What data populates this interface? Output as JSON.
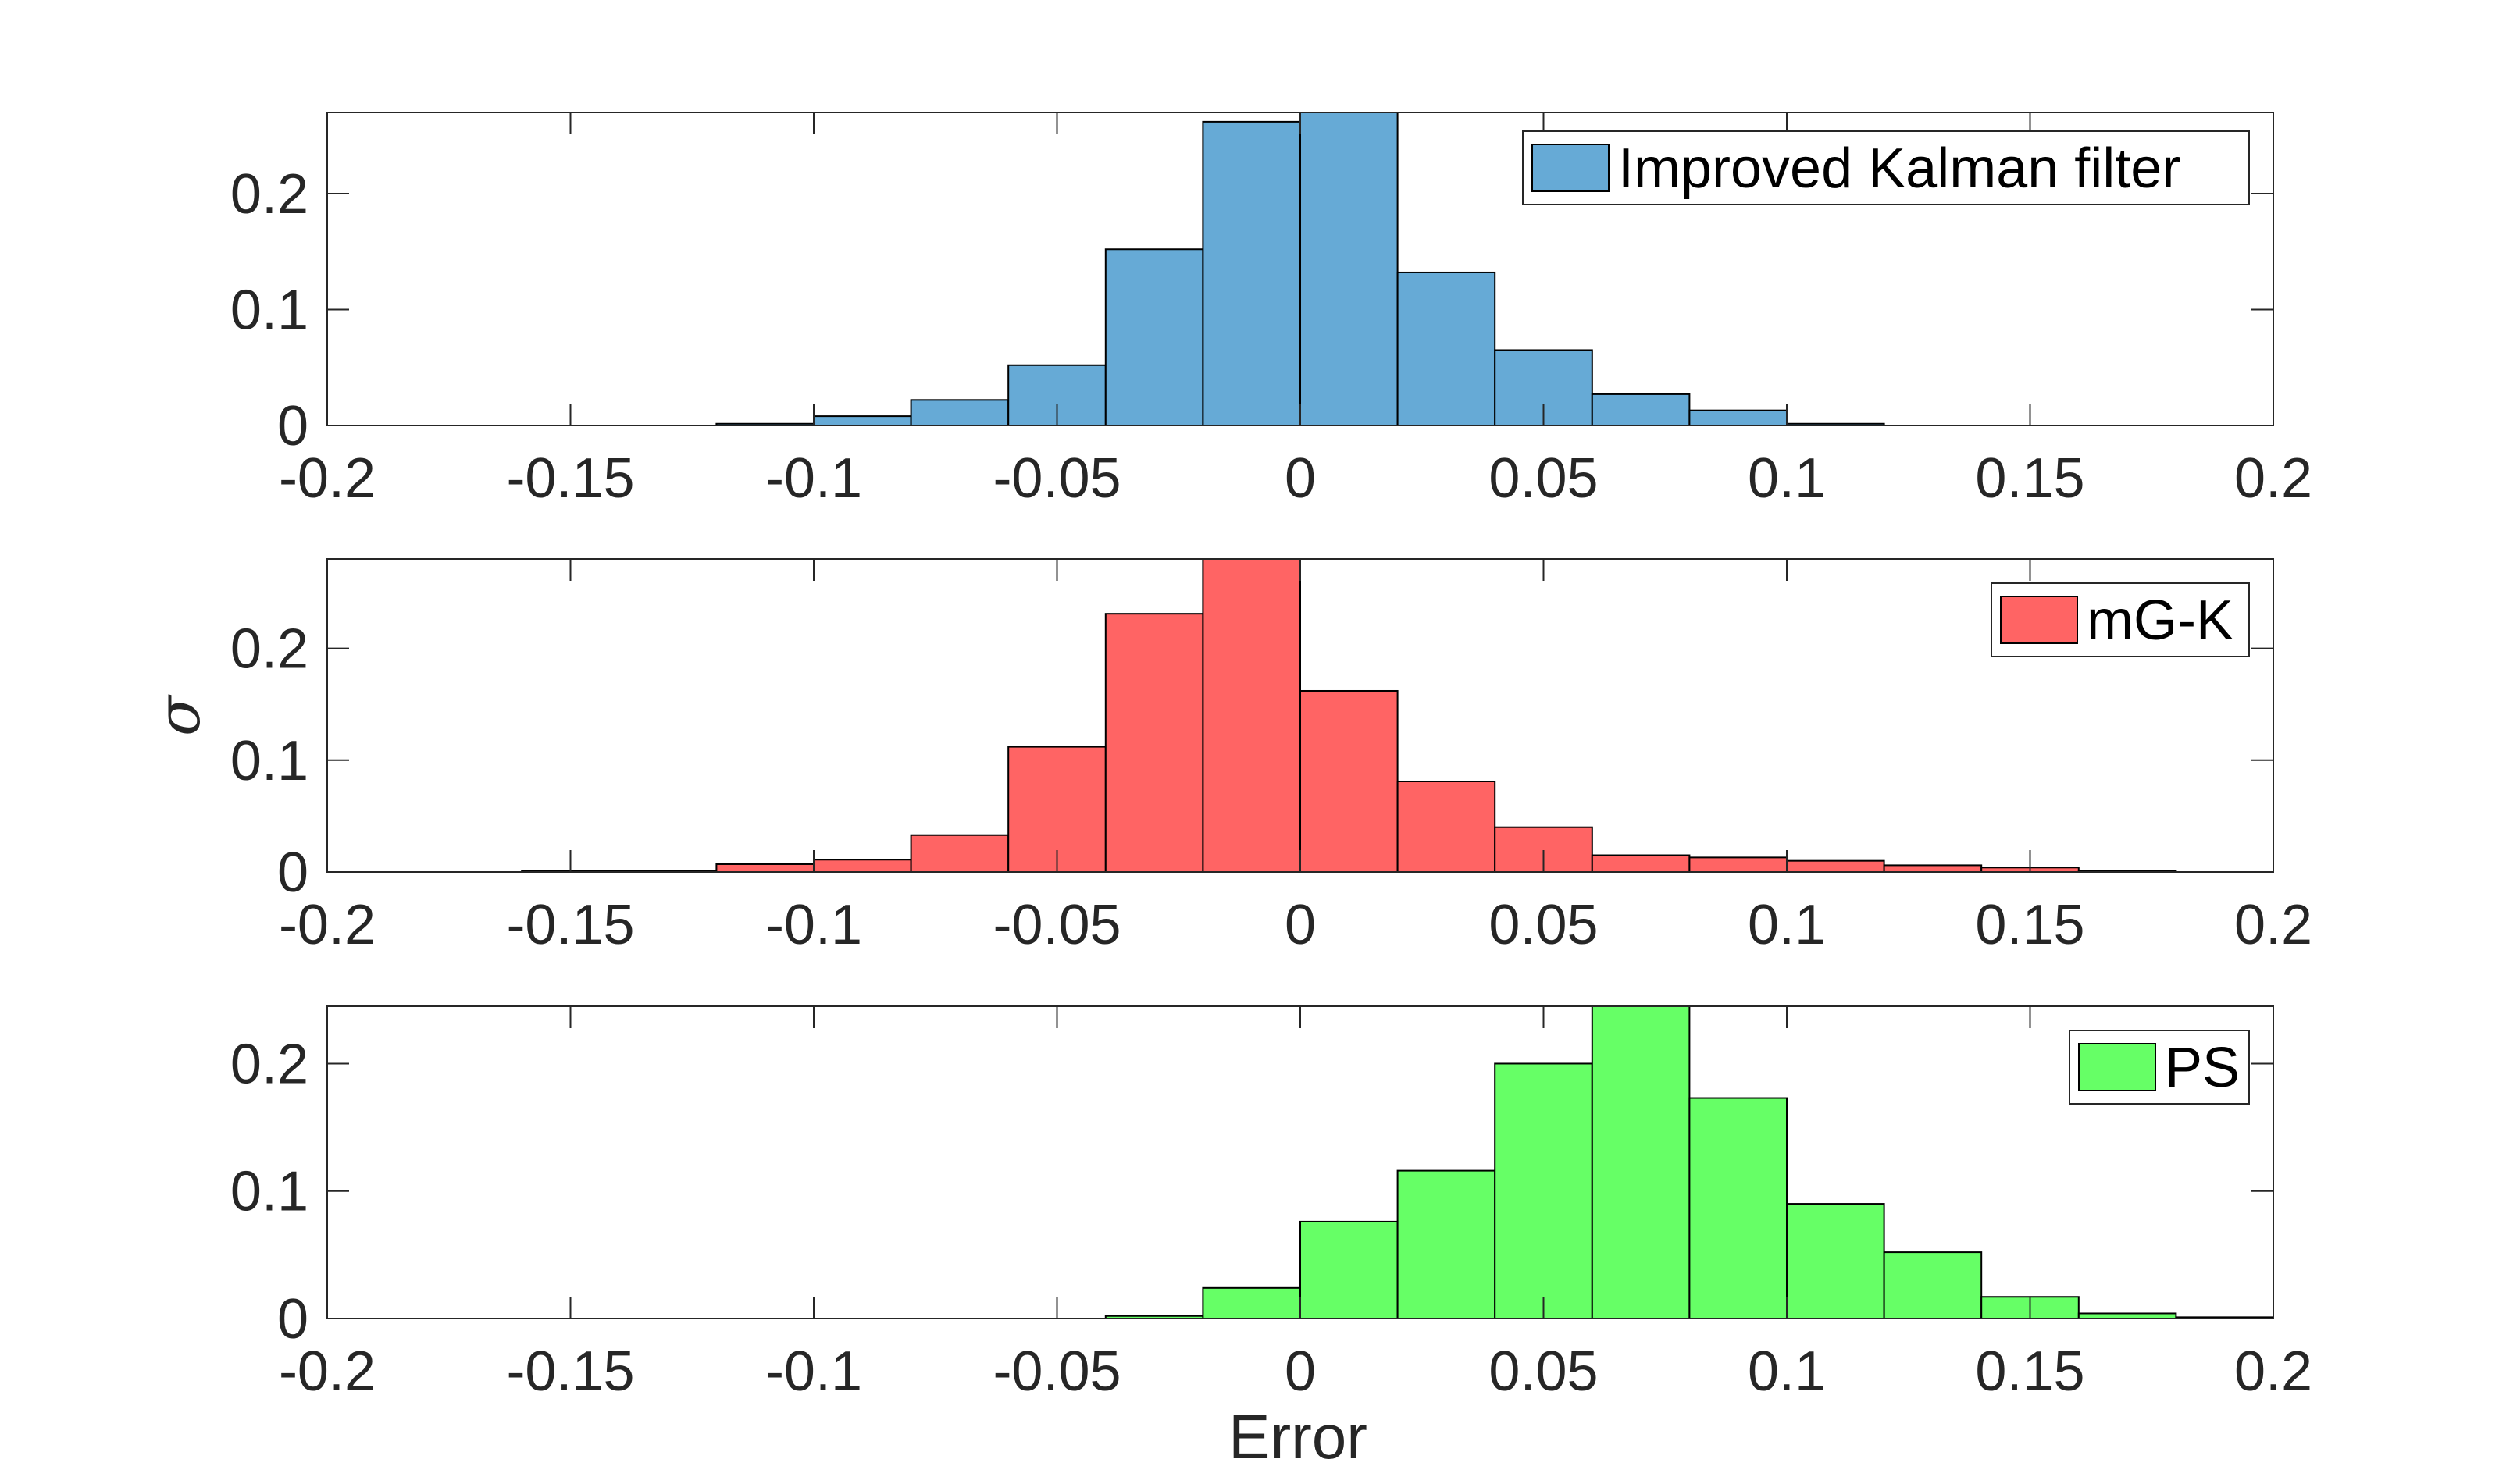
{
  "chart_data": {
    "type": "bar",
    "layout": "three stacked histogram panels sharing the x axis",
    "xlabel": "Error",
    "ylabel": "σ",
    "xlim": [
      -0.2,
      0.2
    ],
    "x_ticks": [
      -0.2,
      -0.15,
      -0.1,
      -0.05,
      0,
      0.05,
      0.1,
      0.15,
      0.2
    ],
    "x_tick_labels": [
      "-0.2",
      "-0.15",
      "-0.1",
      "-0.05",
      "0",
      "0.05",
      "0.1",
      "0.15",
      "0.2"
    ],
    "bin_width": 0.02,
    "panels": [
      {
        "name": "Improved Kalman filter",
        "legend": "Improved Kalman filter",
        "color": "#66aad6",
        "ylim": [
          0,
          0.27
        ],
        "y_ticks": [
          0,
          0.1,
          0.2
        ],
        "y_tick_labels": [
          "0",
          "0.1",
          "0.2"
        ],
        "bins": [
          {
            "x0": -0.12,
            "value": 0.0015
          },
          {
            "x0": -0.1,
            "value": 0.008
          },
          {
            "x0": -0.08,
            "value": 0.022
          },
          {
            "x0": -0.06,
            "value": 0.052
          },
          {
            "x0": -0.04,
            "value": 0.152
          },
          {
            "x0": -0.02,
            "value": 0.262
          },
          {
            "x0": 0.0,
            "value": 0.27
          },
          {
            "x0": 0.02,
            "value": 0.132
          },
          {
            "x0": 0.04,
            "value": 0.065
          },
          {
            "x0": 0.06,
            "value": 0.027
          },
          {
            "x0": 0.08,
            "value": 0.013
          },
          {
            "x0": 0.1,
            "value": 0.0015
          }
        ]
      },
      {
        "name": "mG-K",
        "legend": "mG-K",
        "color": "#ff6464",
        "ylim": [
          0,
          0.28
        ],
        "y_ticks": [
          0,
          0.1,
          0.2
        ],
        "y_tick_labels": [
          "0",
          "0.1",
          "0.2"
        ],
        "bins": [
          {
            "x0": -0.16,
            "value": 0.001
          },
          {
            "x0": -0.14,
            "value": 0.001
          },
          {
            "x0": -0.12,
            "value": 0.007
          },
          {
            "x0": -0.1,
            "value": 0.011
          },
          {
            "x0": -0.08,
            "value": 0.033
          },
          {
            "x0": -0.06,
            "value": 0.112
          },
          {
            "x0": -0.04,
            "value": 0.231
          },
          {
            "x0": -0.02,
            "value": 0.28
          },
          {
            "x0": 0.0,
            "value": 0.162
          },
          {
            "x0": 0.02,
            "value": 0.081
          },
          {
            "x0": 0.04,
            "value": 0.04
          },
          {
            "x0": 0.06,
            "value": 0.015
          },
          {
            "x0": 0.08,
            "value": 0.013
          },
          {
            "x0": 0.1,
            "value": 0.01
          },
          {
            "x0": 0.12,
            "value": 0.006
          },
          {
            "x0": 0.14,
            "value": 0.004
          },
          {
            "x0": 0.16,
            "value": 0.001
          }
        ]
      },
      {
        "name": "PS",
        "legend": "PS",
        "color": "#66ff66",
        "ylim": [
          0,
          0.245
        ],
        "y_ticks": [
          0,
          0.1,
          0.2
        ],
        "y_tick_labels": [
          "0",
          "0.1",
          "0.2"
        ],
        "bins": [
          {
            "x0": -0.04,
            "value": 0.002
          },
          {
            "x0": -0.02,
            "value": 0.024
          },
          {
            "x0": 0.0,
            "value": 0.076
          },
          {
            "x0": 0.02,
            "value": 0.116
          },
          {
            "x0": 0.04,
            "value": 0.2
          },
          {
            "x0": 0.06,
            "value": 0.245
          },
          {
            "x0": 0.08,
            "value": 0.173
          },
          {
            "x0": 0.1,
            "value": 0.09
          },
          {
            "x0": 0.12,
            "value": 0.052
          },
          {
            "x0": 0.14,
            "value": 0.017
          },
          {
            "x0": 0.16,
            "value": 0.004
          },
          {
            "x0": 0.18,
            "value": 0.001
          }
        ]
      }
    ]
  }
}
